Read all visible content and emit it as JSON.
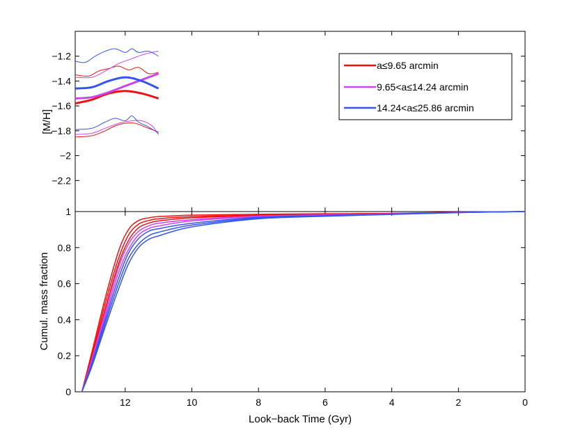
{
  "chart_data": [
    {
      "type": "line",
      "ylabel": "[M/H]",
      "xlabel": "",
      "xlim": [
        13.5,
        0
      ],
      "ylim": [
        -2.45,
        -1.0
      ],
      "yticks": [
        -1.2,
        -1.4,
        -1.6,
        -1.8,
        -2,
        -2.2
      ],
      "ytick_labels": [
        "−1.2",
        "−1.4",
        "−1.6",
        "−1.8",
        "−2",
        "−2.2"
      ],
      "legend": {
        "position": "top-right",
        "entries": [
          {
            "label": "a≤9.65 arcmin",
            "color": "#ee1111"
          },
          {
            "label": "9.65<a≤14.24 arcmin",
            "color": "#cc44ee"
          },
          {
            "label": "14.24<a≤25.86 arcmin",
            "color": "#3355ee"
          }
        ]
      },
      "series": [
        {
          "name": "a≤9.65 arcmin (mean)",
          "color": "#ee1111",
          "width": 3,
          "x": [
            13.5,
            13.0,
            12.5,
            12.0,
            11.5,
            11.0
          ],
          "y": [
            -1.58,
            -1.55,
            -1.5,
            -1.48,
            -1.5,
            -1.54
          ]
        },
        {
          "name": "a≤9.65 arcmin (upper)",
          "color": "#ee1111",
          "width": 1,
          "x": [
            13.5,
            13.1,
            12.8,
            12.5,
            12.2,
            11.9,
            11.6,
            11.3,
            11.0
          ],
          "y": [
            -1.35,
            -1.36,
            -1.32,
            -1.3,
            -1.28,
            -1.31,
            -1.29,
            -1.34,
            -1.33
          ]
        },
        {
          "name": "a≤9.65 arcmin (lower)",
          "color": "#ee1111",
          "width": 1,
          "x": [
            13.5,
            13.0,
            12.6,
            12.3,
            12.0,
            11.7,
            11.4,
            11.0
          ],
          "y": [
            -1.85,
            -1.84,
            -1.8,
            -1.76,
            -1.74,
            -1.74,
            -1.77,
            -1.81
          ]
        },
        {
          "name": "9.65<a≤14.24 arcmin (mean)",
          "color": "#cc44ee",
          "width": 3,
          "x": [
            13.5,
            13.0,
            12.5,
            12.0,
            11.5,
            11.0
          ],
          "y": [
            -1.54,
            -1.53,
            -1.49,
            -1.44,
            -1.39,
            -1.34
          ]
        },
        {
          "name": "9.65<a≤14.24 arcmin (upper)",
          "color": "#cc44ee",
          "width": 1,
          "x": [
            13.5,
            13.0,
            12.6,
            12.2,
            11.8,
            11.5,
            11.2,
            11.0
          ],
          "y": [
            -1.37,
            -1.37,
            -1.32,
            -1.26,
            -1.22,
            -1.19,
            -1.17,
            -1.16
          ]
        },
        {
          "name": "9.65<a≤14.24 arcmin (lower)",
          "color": "#cc44ee",
          "width": 1,
          "x": [
            13.5,
            13.0,
            12.6,
            12.2,
            11.8,
            11.5,
            11.2,
            11.0
          ],
          "y": [
            -1.83,
            -1.82,
            -1.78,
            -1.74,
            -1.72,
            -1.72,
            -1.76,
            -1.83
          ]
        },
        {
          "name": "14.24<a≤25.86 arcmin (mean)",
          "color": "#3355ee",
          "width": 3,
          "x": [
            13.5,
            13.0,
            12.5,
            12.0,
            11.5,
            11.0
          ],
          "y": [
            -1.46,
            -1.45,
            -1.4,
            -1.37,
            -1.4,
            -1.46
          ]
        },
        {
          "name": "14.24<a≤25.86 arcmin (upper)",
          "color": "#3355ee",
          "width": 1,
          "x": [
            13.5,
            13.2,
            12.9,
            12.6,
            12.3,
            12.0,
            11.8,
            11.6,
            11.3,
            11.0
          ],
          "y": [
            -1.24,
            -1.25,
            -1.2,
            -1.16,
            -1.14,
            -1.17,
            -1.14,
            -1.17,
            -1.16,
            -1.2
          ]
        },
        {
          "name": "14.24<a≤25.86 arcmin (lower)",
          "color": "#3355ee",
          "width": 1,
          "x": [
            13.5,
            13.0,
            12.6,
            12.3,
            12.0,
            11.8,
            11.6,
            11.3,
            11.0
          ],
          "y": [
            -1.79,
            -1.78,
            -1.73,
            -1.7,
            -1.72,
            -1.68,
            -1.73,
            -1.77,
            -1.82
          ]
        }
      ]
    },
    {
      "type": "line",
      "ylabel": "Cumul. mass fraction",
      "xlabel": "Look−back Time (Gyr)",
      "xlim": [
        13.5,
        0
      ],
      "ylim": [
        0,
        1
      ],
      "xticks": [
        12,
        10,
        8,
        6,
        4,
        2,
        0
      ],
      "xtick_labels": [
        "12",
        "10",
        "8",
        "6",
        "4",
        "2",
        "0"
      ],
      "yticks": [
        0,
        0.2,
        0.4,
        0.6,
        0.8,
        1
      ],
      "ytick_labels": [
        "0",
        "0.2",
        "0.4",
        "0.6",
        "0.8",
        "1"
      ],
      "series": [
        {
          "name": "a≤9.65 arcmin (upper)",
          "color": "#ee1111",
          "width": 1.5,
          "x": [
            13.3,
            13.0,
            12.6,
            12.2,
            11.9,
            11.6,
            11.3,
            11.0,
            10.0,
            8.0,
            6.0,
            4.0,
            2.0,
            0.0
          ],
          "y": [
            0.0,
            0.22,
            0.52,
            0.78,
            0.9,
            0.95,
            0.965,
            0.972,
            0.98,
            0.985,
            0.988,
            0.99,
            0.997,
            1.0
          ]
        },
        {
          "name": "a≤9.65 arcmin (mean)",
          "color": "#ee1111",
          "width": 1.5,
          "x": [
            13.3,
            13.0,
            12.6,
            12.2,
            11.9,
            11.6,
            11.3,
            11.0,
            10.0,
            8.0,
            6.0,
            4.0,
            2.0,
            0.0
          ],
          "y": [
            0.0,
            0.2,
            0.49,
            0.74,
            0.87,
            0.93,
            0.95,
            0.96,
            0.972,
            0.98,
            0.985,
            0.99,
            0.996,
            1.0
          ]
        },
        {
          "name": "a≤9.65 arcmin (lower)",
          "color": "#ee1111",
          "width": 1.5,
          "x": [
            13.3,
            13.0,
            12.6,
            12.2,
            11.9,
            11.6,
            11.3,
            11.0,
            10.0,
            8.0,
            6.0,
            4.0,
            2.0,
            0.0
          ],
          "y": [
            0.0,
            0.19,
            0.46,
            0.71,
            0.84,
            0.91,
            0.935,
            0.948,
            0.965,
            0.978,
            0.983,
            0.989,
            0.996,
            1.0
          ]
        },
        {
          "name": "9.65<a≤14.24 arcmin (upper)",
          "color": "#cc44ee",
          "width": 1.5,
          "x": [
            13.3,
            13.0,
            12.6,
            12.2,
            11.9,
            11.6,
            11.3,
            11.0,
            10.0,
            8.0,
            6.0,
            4.0,
            2.0,
            0.0
          ],
          "y": [
            0.0,
            0.18,
            0.44,
            0.69,
            0.82,
            0.89,
            0.92,
            0.935,
            0.955,
            0.975,
            0.982,
            0.988,
            0.996,
            1.0
          ]
        },
        {
          "name": "9.65<a≤14.24 arcmin (mean)",
          "color": "#cc44ee",
          "width": 1.5,
          "x": [
            13.3,
            13.0,
            12.6,
            12.2,
            11.9,
            11.6,
            11.3,
            11.0,
            10.0,
            8.0,
            6.0,
            4.0,
            2.0,
            0.0
          ],
          "y": [
            0.0,
            0.17,
            0.42,
            0.66,
            0.79,
            0.87,
            0.905,
            0.92,
            0.948,
            0.972,
            0.98,
            0.987,
            0.995,
            1.0
          ]
        },
        {
          "name": "14.24<a≤25.86 arcmin (upper)",
          "color": "#3355ee",
          "width": 1.5,
          "x": [
            13.3,
            13.0,
            12.6,
            12.2,
            11.9,
            11.6,
            11.3,
            11.0,
            10.0,
            8.0,
            6.0,
            4.0,
            2.0,
            0.0
          ],
          "y": [
            0.0,
            0.16,
            0.4,
            0.63,
            0.77,
            0.85,
            0.89,
            0.905,
            0.935,
            0.968,
            0.978,
            0.986,
            0.995,
            1.0
          ]
        },
        {
          "name": "14.24<a≤25.86 arcmin (mean)",
          "color": "#3355ee",
          "width": 1.5,
          "x": [
            13.3,
            13.0,
            12.6,
            12.2,
            11.9,
            11.6,
            11.3,
            11.0,
            10.0,
            8.0,
            6.0,
            4.0,
            2.0,
            0.0
          ],
          "y": [
            0.0,
            0.15,
            0.38,
            0.6,
            0.74,
            0.82,
            0.865,
            0.885,
            0.925,
            0.964,
            0.976,
            0.985,
            0.994,
            1.0
          ]
        },
        {
          "name": "14.24<a≤25.86 arcmin (lower)",
          "color": "#3355ee",
          "width": 1.5,
          "x": [
            13.3,
            13.0,
            12.6,
            12.2,
            11.9,
            11.6,
            11.3,
            11.0,
            10.0,
            8.0,
            6.0,
            4.0,
            2.0,
            0.0
          ],
          "y": [
            0.0,
            0.14,
            0.36,
            0.57,
            0.71,
            0.8,
            0.845,
            0.865,
            0.915,
            0.96,
            0.974,
            0.984,
            0.994,
            1.0
          ]
        }
      ]
    }
  ]
}
